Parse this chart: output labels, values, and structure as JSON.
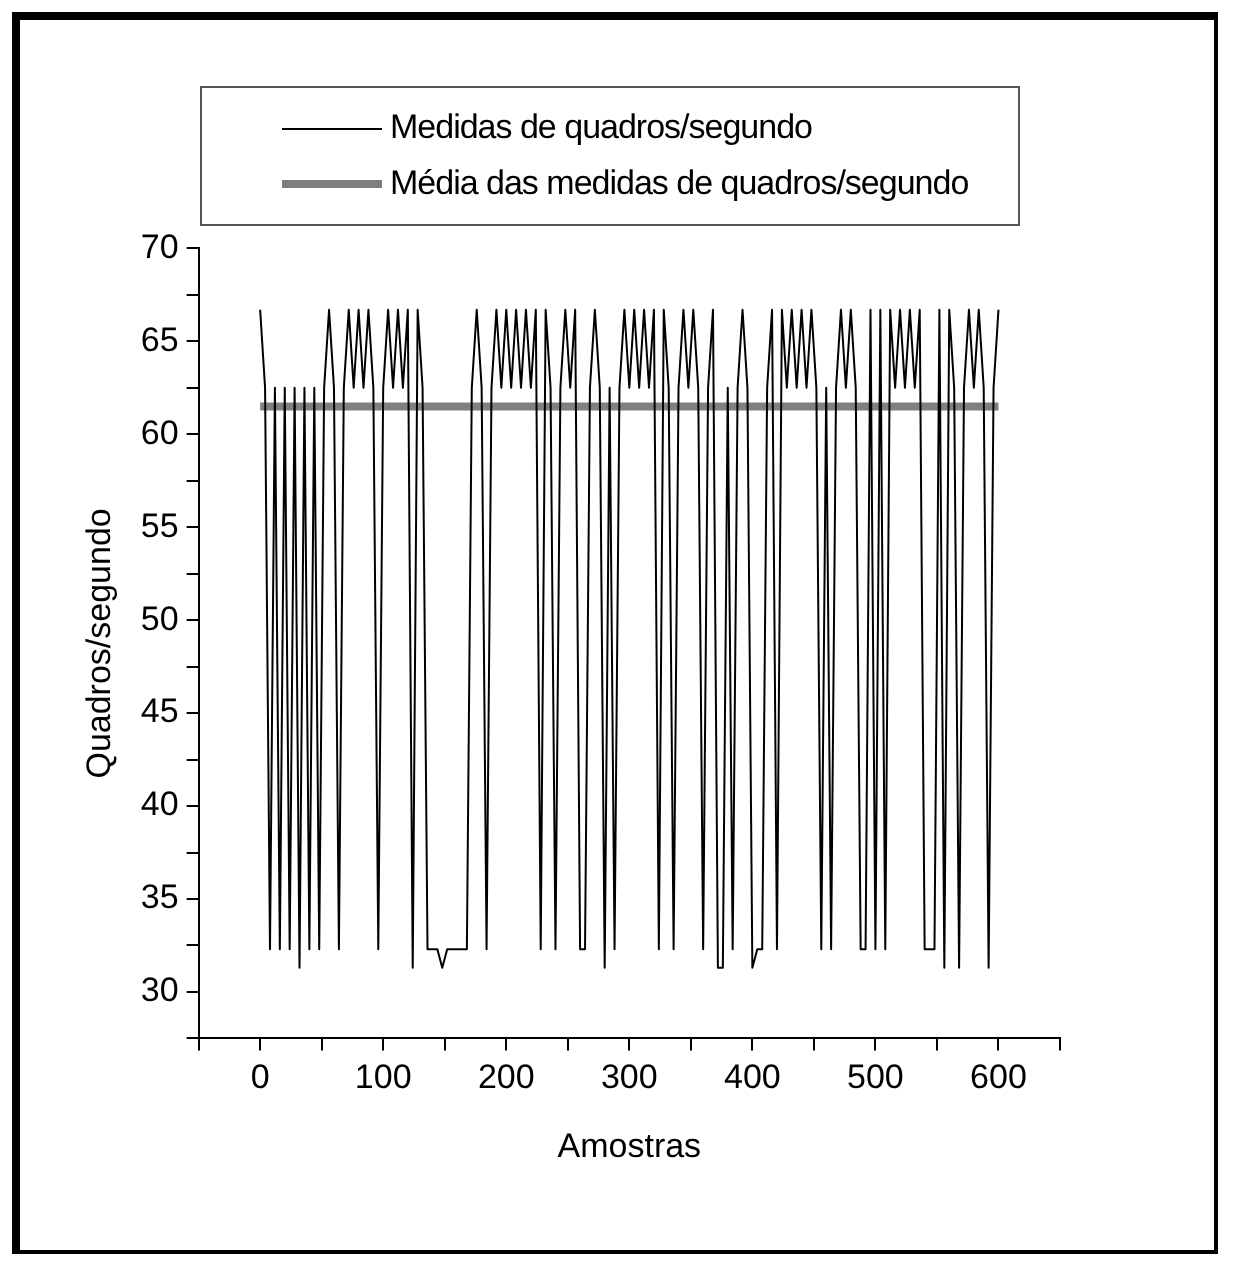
{
  "chart_data": {
    "type": "line",
    "xlabel": "Amostras",
    "ylabel": "Quadros/segundo",
    "legend": "top",
    "grid": false,
    "marker": "none",
    "line_style": "solid",
    "xlim": [
      -50,
      650
    ],
    "ylim": [
      27.5,
      70
    ],
    "xticks": [
      {
        "value": -50,
        "label": null
      },
      0,
      {
        "value": 50,
        "label": null
      },
      100,
      {
        "value": 150,
        "label": null
      },
      200,
      {
        "value": 250,
        "label": null
      },
      300,
      {
        "value": 350,
        "label": null
      },
      400,
      {
        "value": 450,
        "label": null
      },
      500,
      {
        "value": 550,
        "label": null
      },
      600,
      {
        "value": 650,
        "label": null
      }
    ],
    "yticks": [
      {
        "value": 27.5,
        "label": null
      },
      30,
      {
        "value": 32.5,
        "label": null
      },
      35,
      {
        "value": 37.5,
        "label": null
      },
      40,
      {
        "value": 42.5,
        "label": null
      },
      45,
      {
        "value": 47.5,
        "label": null
      },
      50,
      {
        "value": 52.5,
        "label": null
      },
      55,
      {
        "value": 57.5,
        "label": null
      },
      60,
      {
        "value": 62.5,
        "label": null
      },
      65,
      {
        "value": 67.5,
        "label": null
      },
      70
    ],
    "series": [
      {
        "name": "Medidas de quadros/segundo",
        "color": "#000000",
        "x": [
          0,
          4,
          8,
          12,
          16,
          20,
          24,
          28,
          32,
          36,
          40,
          44,
          48,
          52,
          56,
          60,
          64,
          68,
          72,
          76,
          80,
          84,
          88,
          92,
          96,
          100,
          104,
          108,
          112,
          116,
          120,
          124,
          128,
          132,
          136,
          140,
          144,
          148,
          152,
          156,
          160,
          164,
          168,
          172,
          176,
          180,
          184,
          188,
          192,
          196,
          200,
          204,
          208,
          212,
          216,
          220,
          224,
          228,
          232,
          236,
          240,
          244,
          248,
          252,
          256,
          260,
          264,
          268,
          272,
          276,
          280,
          284,
          288,
          292,
          296,
          300,
          304,
          308,
          312,
          316,
          320,
          324,
          328,
          332,
          336,
          340,
          344,
          348,
          352,
          356,
          360,
          364,
          368,
          372,
          376,
          380,
          384,
          388,
          392,
          396,
          400,
          404,
          408,
          412,
          416,
          420,
          424,
          428,
          432,
          436,
          440,
          444,
          448,
          452,
          456,
          460,
          464,
          468,
          472,
          476,
          480,
          484,
          488,
          492,
          496,
          500,
          504,
          508,
          512,
          516,
          520,
          524,
          528,
          532,
          536,
          540,
          544,
          548,
          552,
          556,
          560,
          564,
          568,
          572,
          576,
          580,
          584,
          588,
          592,
          596,
          600
        ],
        "values": [
          66.7,
          62.5,
          32.3,
          62.5,
          32.3,
          62.5,
          32.3,
          62.5,
          31.3,
          62.5,
          32.3,
          62.5,
          32.3,
          62.5,
          66.7,
          62.5,
          32.3,
          62.5,
          66.7,
          62.5,
          66.7,
          62.5,
          66.7,
          62.5,
          32.3,
          62.5,
          66.7,
          62.5,
          66.7,
          62.5,
          66.7,
          31.3,
          66.7,
          62.5,
          32.3,
          32.3,
          32.3,
          31.3,
          32.3,
          32.3,
          32.3,
          32.3,
          32.3,
          62.5,
          66.7,
          62.5,
          32.3,
          62.5,
          66.7,
          62.5,
          66.7,
          62.5,
          66.7,
          62.5,
          66.7,
          62.5,
          66.7,
          32.3,
          66.7,
          62.5,
          32.3,
          62.5,
          66.7,
          62.5,
          66.7,
          32.3,
          32.3,
          62.5,
          66.7,
          62.5,
          31.3,
          62.5,
          32.3,
          62.5,
          66.7,
          62.5,
          66.7,
          62.5,
          66.7,
          62.5,
          66.7,
          32.3,
          66.7,
          62.5,
          32.3,
          62.5,
          66.7,
          62.5,
          66.7,
          62.5,
          32.3,
          62.5,
          66.7,
          31.3,
          31.3,
          62.5,
          32.3,
          62.5,
          66.7,
          62.5,
          31.3,
          32.3,
          32.3,
          62.5,
          66.7,
          32.3,
          66.7,
          62.5,
          66.7,
          62.5,
          66.7,
          62.5,
          66.7,
          62.5,
          32.3,
          62.5,
          32.3,
          62.5,
          66.7,
          62.5,
          66.7,
          62.5,
          32.3,
          32.3,
          66.7,
          32.3,
          66.7,
          32.3,
          66.7,
          62.5,
          66.7,
          62.5,
          66.7,
          62.5,
          66.7,
          32.3,
          32.3,
          32.3,
          66.7,
          31.3,
          66.7,
          62.5,
          31.3,
          62.5,
          66.7,
          62.5,
          66.7,
          62.5,
          31.3,
          62.5,
          66.7
        ]
      },
      {
        "name": "Média das medidas de quadros/segundo",
        "color": "#808080",
        "x": [
          0,
          600
        ],
        "values": [
          61.5,
          61.5
        ]
      }
    ]
  }
}
